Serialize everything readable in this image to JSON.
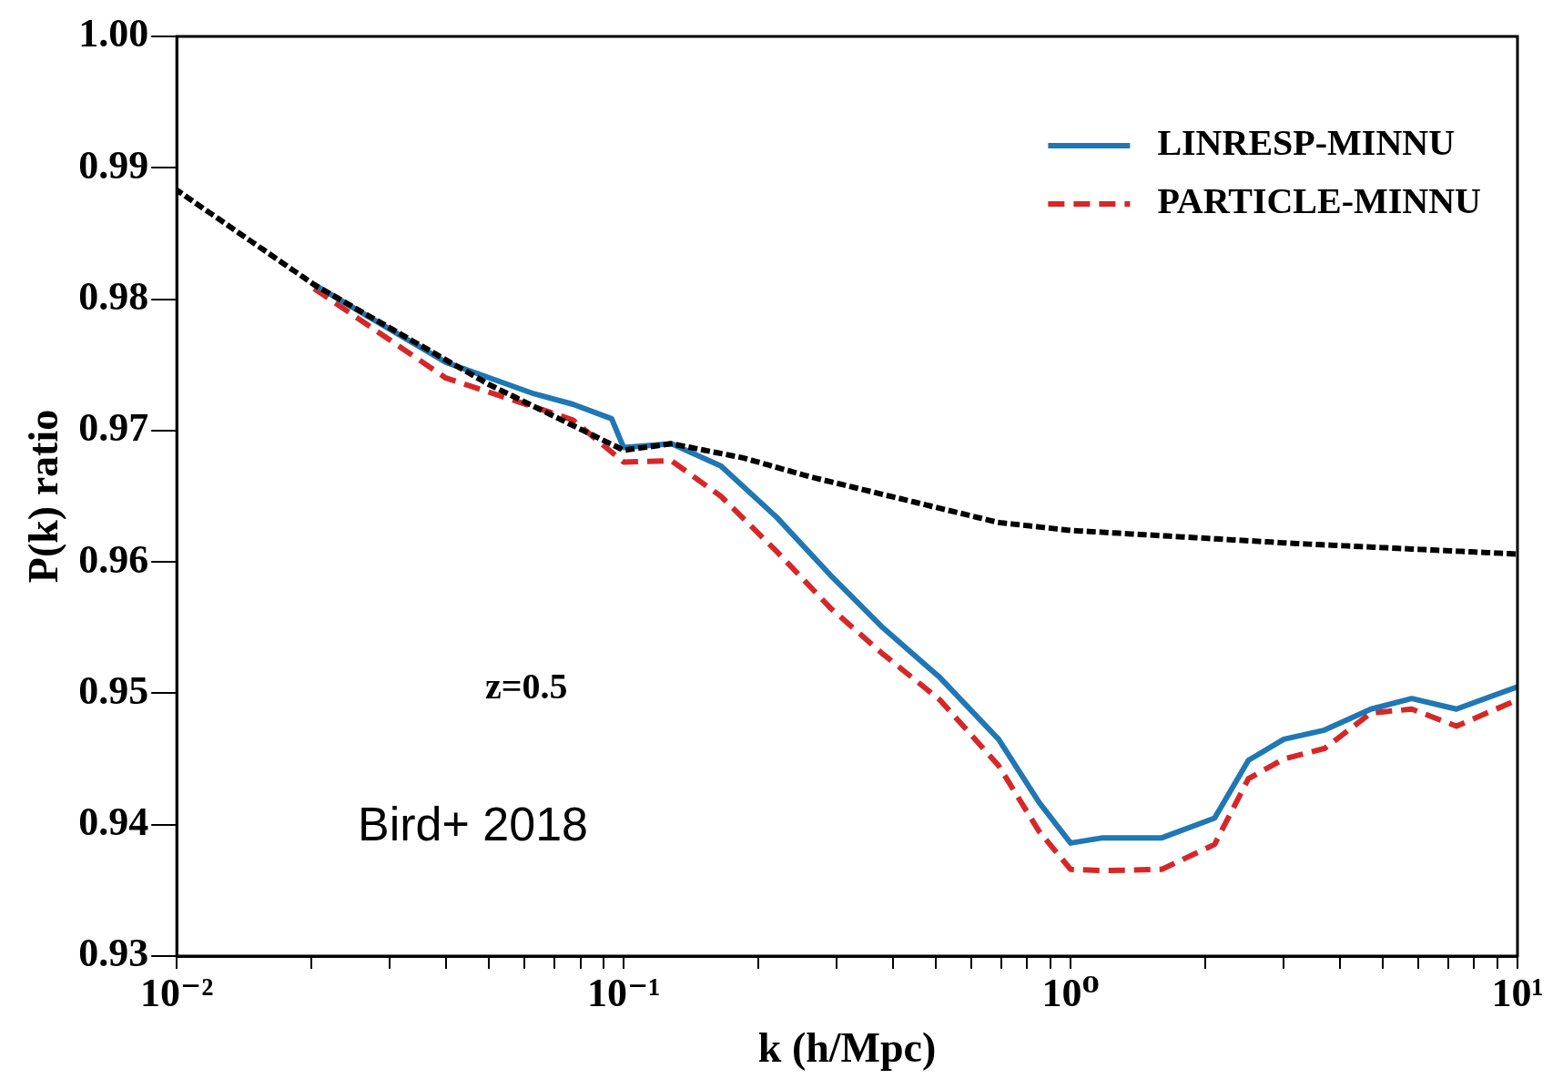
{
  "chart_data": {
    "type": "line",
    "xlabel": "k (h/Mpc)",
    "ylabel": "P(k) ratio",
    "log": "x",
    "grid": false,
    "legend": "top right",
    "marker": "none",
    "xlim": [
      0.01,
      10
    ],
    "ylim": [
      0.93,
      1.0
    ],
    "xticks": [
      {
        "value": 0.01,
        "label": "10⁻²"
      },
      {
        "value": 0.02,
        "label": null
      },
      {
        "value": 0.03,
        "label": null
      },
      {
        "value": 0.04,
        "label": null
      },
      {
        "value": 0.05,
        "label": null
      },
      {
        "value": 0.06,
        "label": null
      },
      {
        "value": 0.07,
        "label": null
      },
      {
        "value": 0.08,
        "label": null
      },
      {
        "value": 0.09,
        "label": null
      },
      {
        "value": 0.1,
        "label": "10⁻¹"
      },
      {
        "value": 0.2,
        "label": null
      },
      {
        "value": 0.3,
        "label": null
      },
      {
        "value": 0.4,
        "label": null
      },
      {
        "value": 0.5,
        "label": null
      },
      {
        "value": 0.6,
        "label": null
      },
      {
        "value": 0.7,
        "label": null
      },
      {
        "value": 0.8,
        "label": null
      },
      {
        "value": 0.9,
        "label": null
      },
      {
        "value": 1,
        "label": "10⁰"
      },
      {
        "value": 2,
        "label": null
      },
      {
        "value": 3,
        "label": null
      },
      {
        "value": 4,
        "label": null
      },
      {
        "value": 5,
        "label": null
      },
      {
        "value": 6,
        "label": null
      },
      {
        "value": 7,
        "label": null
      },
      {
        "value": 8,
        "label": null
      },
      {
        "value": 9,
        "label": null
      },
      {
        "value": 10,
        "label": "10¹"
      }
    ],
    "yticks": [
      {
        "value": 0.93,
        "label": "0.93"
      },
      {
        "value": 0.94,
        "label": "0.94"
      },
      {
        "value": 0.95,
        "label": "0.95"
      },
      {
        "value": 0.96,
        "label": "0.96"
      },
      {
        "value": 0.97,
        "label": "0.97"
      },
      {
        "value": 0.98,
        "label": "0.98"
      },
      {
        "value": 0.99,
        "label": "0.99"
      },
      {
        "value": 1.0,
        "label": "1.00"
      }
    ],
    "annotations": [
      "z=0.5",
      "Bird+ 2018"
    ],
    "series": [
      {
        "color": "#000000",
        "line_style": "dotted",
        "x": [
          0.01,
          0.0203,
          0.05,
          0.1,
          0.128,
          0.186,
          0.26,
          0.69,
          1,
          3.2,
          10
        ],
        "values": [
          0.9883,
          0.9811,
          0.9735,
          0.9685,
          0.969,
          0.9679,
          0.9665,
          0.963,
          0.9624,
          0.9614,
          0.9606
        ]
      },
      {
        "name": "LINRESP-MINNU",
        "color": "#1f77b4",
        "line_style": "solid",
        "x": [
          0.0203,
          0.04,
          0.063,
          0.077,
          0.094,
          0.1,
          0.128,
          0.165,
          0.22,
          0.29,
          0.38,
          0.51,
          0.69,
          0.85,
          1.0,
          1.18,
          1.6,
          2.1,
          2.5,
          3.0,
          3.7,
          4.7,
          5.8,
          7.3,
          10
        ],
        "values": [
          0.9811,
          0.9752,
          0.9728,
          0.972,
          0.9709,
          0.9687,
          0.969,
          0.9673,
          0.9634,
          0.959,
          0.955,
          0.9512,
          0.9465,
          0.9417,
          0.9386,
          0.939,
          0.939,
          0.9405,
          0.9449,
          0.9465,
          0.9472,
          0.9488,
          0.9496,
          0.9488,
          0.9505
        ]
      },
      {
        "name": "PARTICLE-MINNU",
        "color": "#d62728",
        "line_style": "dashed",
        "x": [
          0.0203,
          0.04,
          0.063,
          0.077,
          0.1,
          0.128,
          0.165,
          0.22,
          0.29,
          0.38,
          0.51,
          0.69,
          0.85,
          1.0,
          1.18,
          1.6,
          2.1,
          2.5,
          3.0,
          3.7,
          4.7,
          5.8,
          7.3,
          10
        ],
        "values": [
          0.9808,
          0.974,
          0.9718,
          0.9708,
          0.9676,
          0.9677,
          0.965,
          0.9608,
          0.9565,
          0.953,
          0.9495,
          0.9445,
          0.9395,
          0.9366,
          0.9365,
          0.9366,
          0.9385,
          0.9435,
          0.945,
          0.9458,
          0.9485,
          0.9488,
          0.9475,
          0.9495
        ]
      }
    ]
  }
}
